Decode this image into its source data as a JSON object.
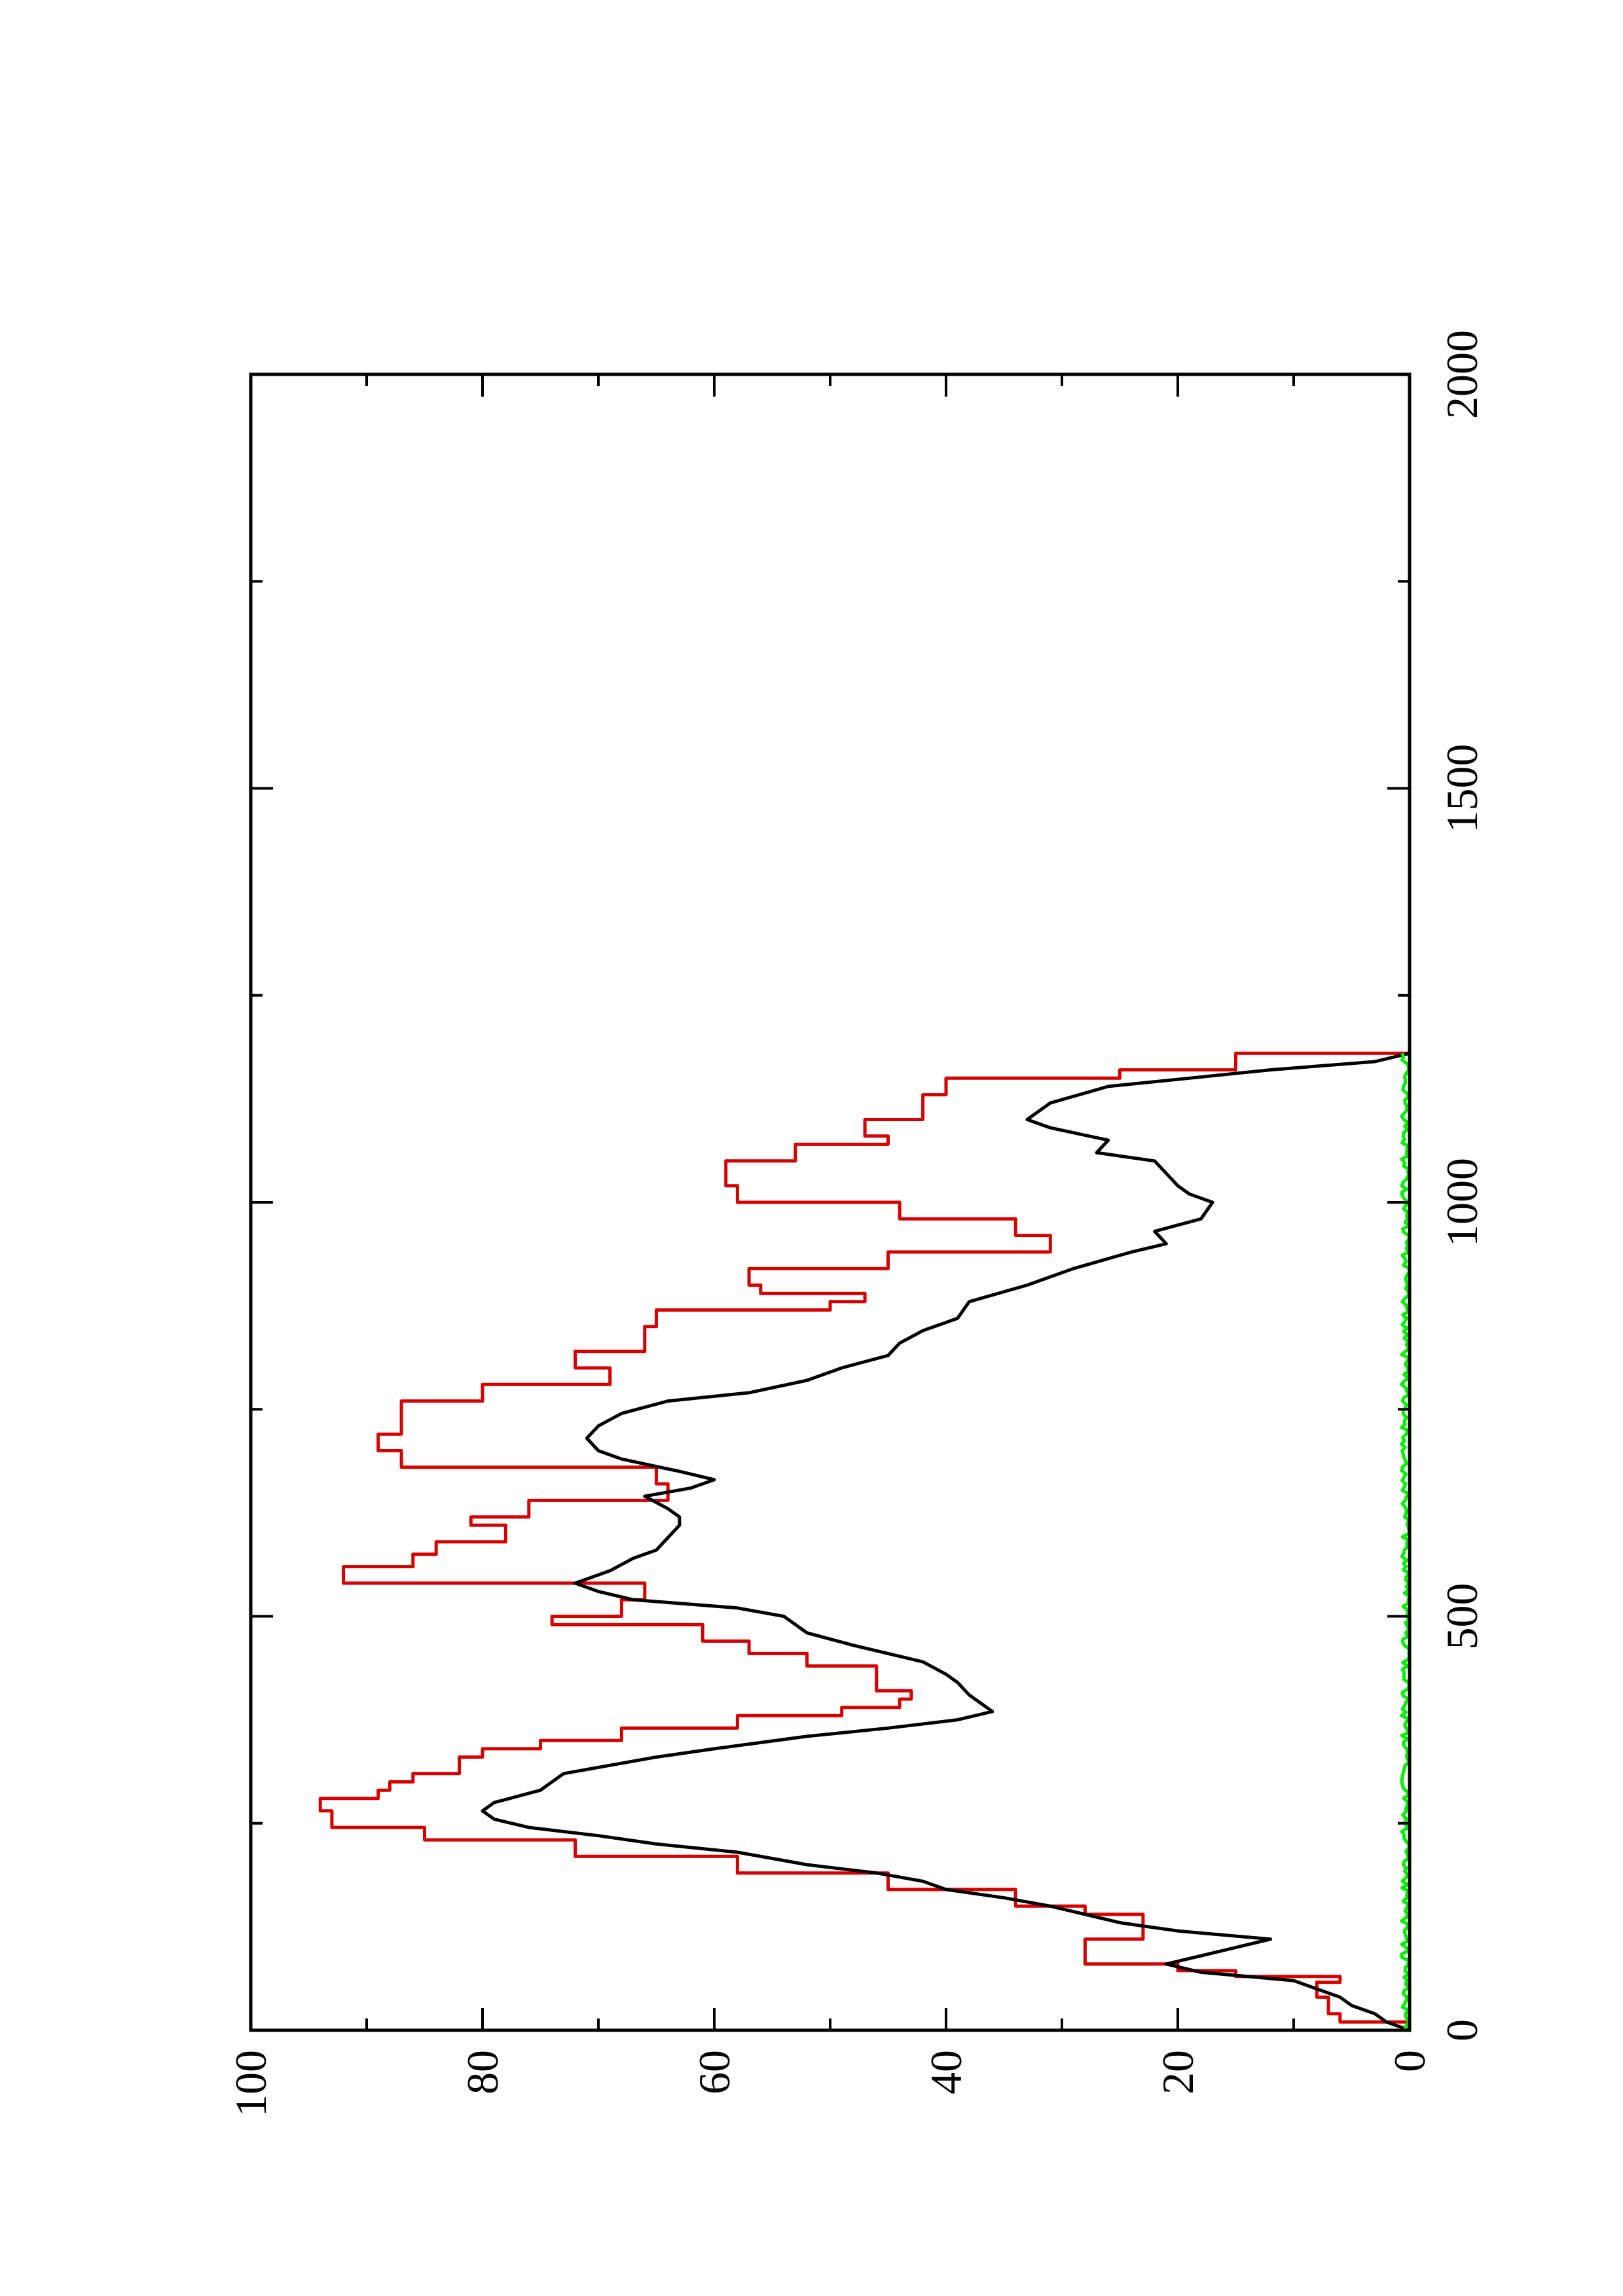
{
  "chart_data": {
    "type": "line",
    "orientation": "rotated 90° counter-clockwise",
    "xlim": [
      0,
      2000
    ],
    "ylim": [
      0,
      100
    ],
    "x_ticks": [
      "0",
      "500",
      "1000",
      "1500",
      "2000"
    ],
    "y_ticks": [
      "0",
      "20",
      "40",
      "60",
      "80",
      "100"
    ],
    "x_minor_step": 250,
    "y_minor_step": 10,
    "grid": false,
    "series": [
      {
        "color": "#d40000",
        "stroke": "step",
        "points": [
          [
            0,
            0
          ],
          [
            10,
            6
          ],
          [
            20,
            7
          ],
          [
            30,
            7
          ],
          [
            40,
            8
          ],
          [
            50,
            8
          ],
          [
            58,
            6
          ],
          [
            65,
            15
          ],
          [
            72,
            20
          ],
          [
            80,
            28
          ],
          [
            100,
            28
          ],
          [
            110,
            23
          ],
          [
            130,
            23
          ],
          [
            140,
            28
          ],
          [
            150,
            34
          ],
          [
            170,
            45
          ],
          [
            190,
            58
          ],
          [
            210,
            72
          ],
          [
            230,
            85
          ],
          [
            245,
            93
          ],
          [
            265,
            94
          ],
          [
            280,
            89
          ],
          [
            290,
            88
          ],
          [
            300,
            86
          ],
          [
            310,
            82
          ],
          [
            330,
            80
          ],
          [
            340,
            75
          ],
          [
            350,
            68
          ],
          [
            365,
            58
          ],
          [
            380,
            49
          ],
          [
            390,
            44
          ],
          [
            400,
            43
          ],
          [
            410,
            46
          ],
          [
            425,
            46
          ],
          [
            440,
            52
          ],
          [
            455,
            57
          ],
          [
            470,
            61
          ],
          [
            490,
            74
          ],
          [
            500,
            68
          ],
          [
            520,
            66
          ],
          [
            540,
            92
          ],
          [
            560,
            86
          ],
          [
            575,
            84
          ],
          [
            590,
            78
          ],
          [
            610,
            81
          ],
          [
            620,
            76
          ],
          [
            640,
            64
          ],
          [
            660,
            65
          ],
          [
            680,
            87
          ],
          [
            700,
            89
          ],
          [
            720,
            87
          ],
          [
            740,
            87
          ],
          [
            760,
            80
          ],
          [
            780,
            69
          ],
          [
            800,
            72
          ],
          [
            820,
            66
          ],
          [
            850,
            65
          ],
          [
            870,
            50
          ],
          [
            880,
            47
          ],
          [
            890,
            56
          ],
          [
            900,
            57
          ],
          [
            920,
            45
          ],
          [
            940,
            31
          ],
          [
            960,
            34
          ],
          [
            980,
            44
          ],
          [
            1000,
            58
          ],
          [
            1020,
            59
          ],
          [
            1050,
            53
          ],
          [
            1070,
            45
          ],
          [
            1080,
            47
          ],
          [
            1100,
            42
          ],
          [
            1130,
            40
          ],
          [
            1150,
            25
          ],
          [
            1160,
            15
          ],
          [
            1180,
            0
          ]
        ]
      },
      {
        "color": "#000000",
        "stroke": "line",
        "points": [
          [
            0,
            0
          ],
          [
            10,
            2
          ],
          [
            20,
            3
          ],
          [
            30,
            5
          ],
          [
            40,
            6
          ],
          [
            50,
            8
          ],
          [
            60,
            10
          ],
          [
            70,
            18
          ],
          [
            80,
            21
          ],
          [
            90,
            18
          ],
          [
            100,
            15
          ],
          [
            110,
            12
          ],
          [
            120,
            20
          ],
          [
            130,
            25
          ],
          [
            140,
            28
          ],
          [
            150,
            31
          ],
          [
            160,
            35
          ],
          [
            170,
            40
          ],
          [
            180,
            42
          ],
          [
            190,
            46
          ],
          [
            200,
            52
          ],
          [
            215,
            58
          ],
          [
            225,
            65
          ],
          [
            235,
            70
          ],
          [
            245,
            76
          ],
          [
            255,
            79
          ],
          [
            265,
            80
          ],
          [
            275,
            79
          ],
          [
            290,
            75
          ],
          [
            300,
            74
          ],
          [
            310,
            73
          ],
          [
            320,
            69
          ],
          [
            330,
            65
          ],
          [
            340,
            60
          ],
          [
            355,
            52
          ],
          [
            365,
            45
          ],
          [
            375,
            39
          ],
          [
            385,
            36
          ],
          [
            395,
            37
          ],
          [
            405,
            38
          ],
          [
            420,
            39
          ],
          [
            430,
            40
          ],
          [
            445,
            42
          ],
          [
            455,
            45
          ],
          [
            465,
            48
          ],
          [
            480,
            52
          ],
          [
            500,
            54
          ],
          [
            510,
            58
          ],
          [
            520,
            67
          ],
          [
            530,
            70
          ],
          [
            540,
            72
          ],
          [
            555,
            69
          ],
          [
            570,
            67
          ],
          [
            580,
            65
          ],
          [
            595,
            64
          ],
          [
            610,
            63
          ],
          [
            620,
            63
          ],
          [
            630,
            64
          ],
          [
            645,
            66
          ],
          [
            655,
            62
          ],
          [
            665,
            60
          ],
          [
            675,
            63
          ],
          [
            690,
            68
          ],
          [
            700,
            70
          ],
          [
            715,
            71
          ],
          [
            730,
            70
          ],
          [
            745,
            68
          ],
          [
            760,
            64
          ],
          [
            770,
            57
          ],
          [
            785,
            52
          ],
          [
            800,
            49
          ],
          [
            815,
            45
          ],
          [
            830,
            44
          ],
          [
            845,
            42
          ],
          [
            860,
            39
          ],
          [
            880,
            38
          ],
          [
            900,
            33
          ],
          [
            920,
            29
          ],
          [
            940,
            24
          ],
          [
            950,
            21
          ],
          [
            965,
            22
          ],
          [
            980,
            18
          ],
          [
            1000,
            17
          ],
          [
            1010,
            19
          ],
          [
            1020,
            20
          ],
          [
            1035,
            21
          ],
          [
            1050,
            22
          ],
          [
            1060,
            27
          ],
          [
            1075,
            26
          ],
          [
            1090,
            31
          ],
          [
            1100,
            33
          ],
          [
            1120,
            31
          ],
          [
            1140,
            26
          ],
          [
            1150,
            19
          ],
          [
            1160,
            12
          ],
          [
            1170,
            3
          ],
          [
            1180,
            0
          ]
        ]
      },
      {
        "color": "#00ee00",
        "stroke": "noise",
        "amplitude": 0.7,
        "x_range": [
          0,
          1180
        ],
        "step": 4
      }
    ]
  }
}
